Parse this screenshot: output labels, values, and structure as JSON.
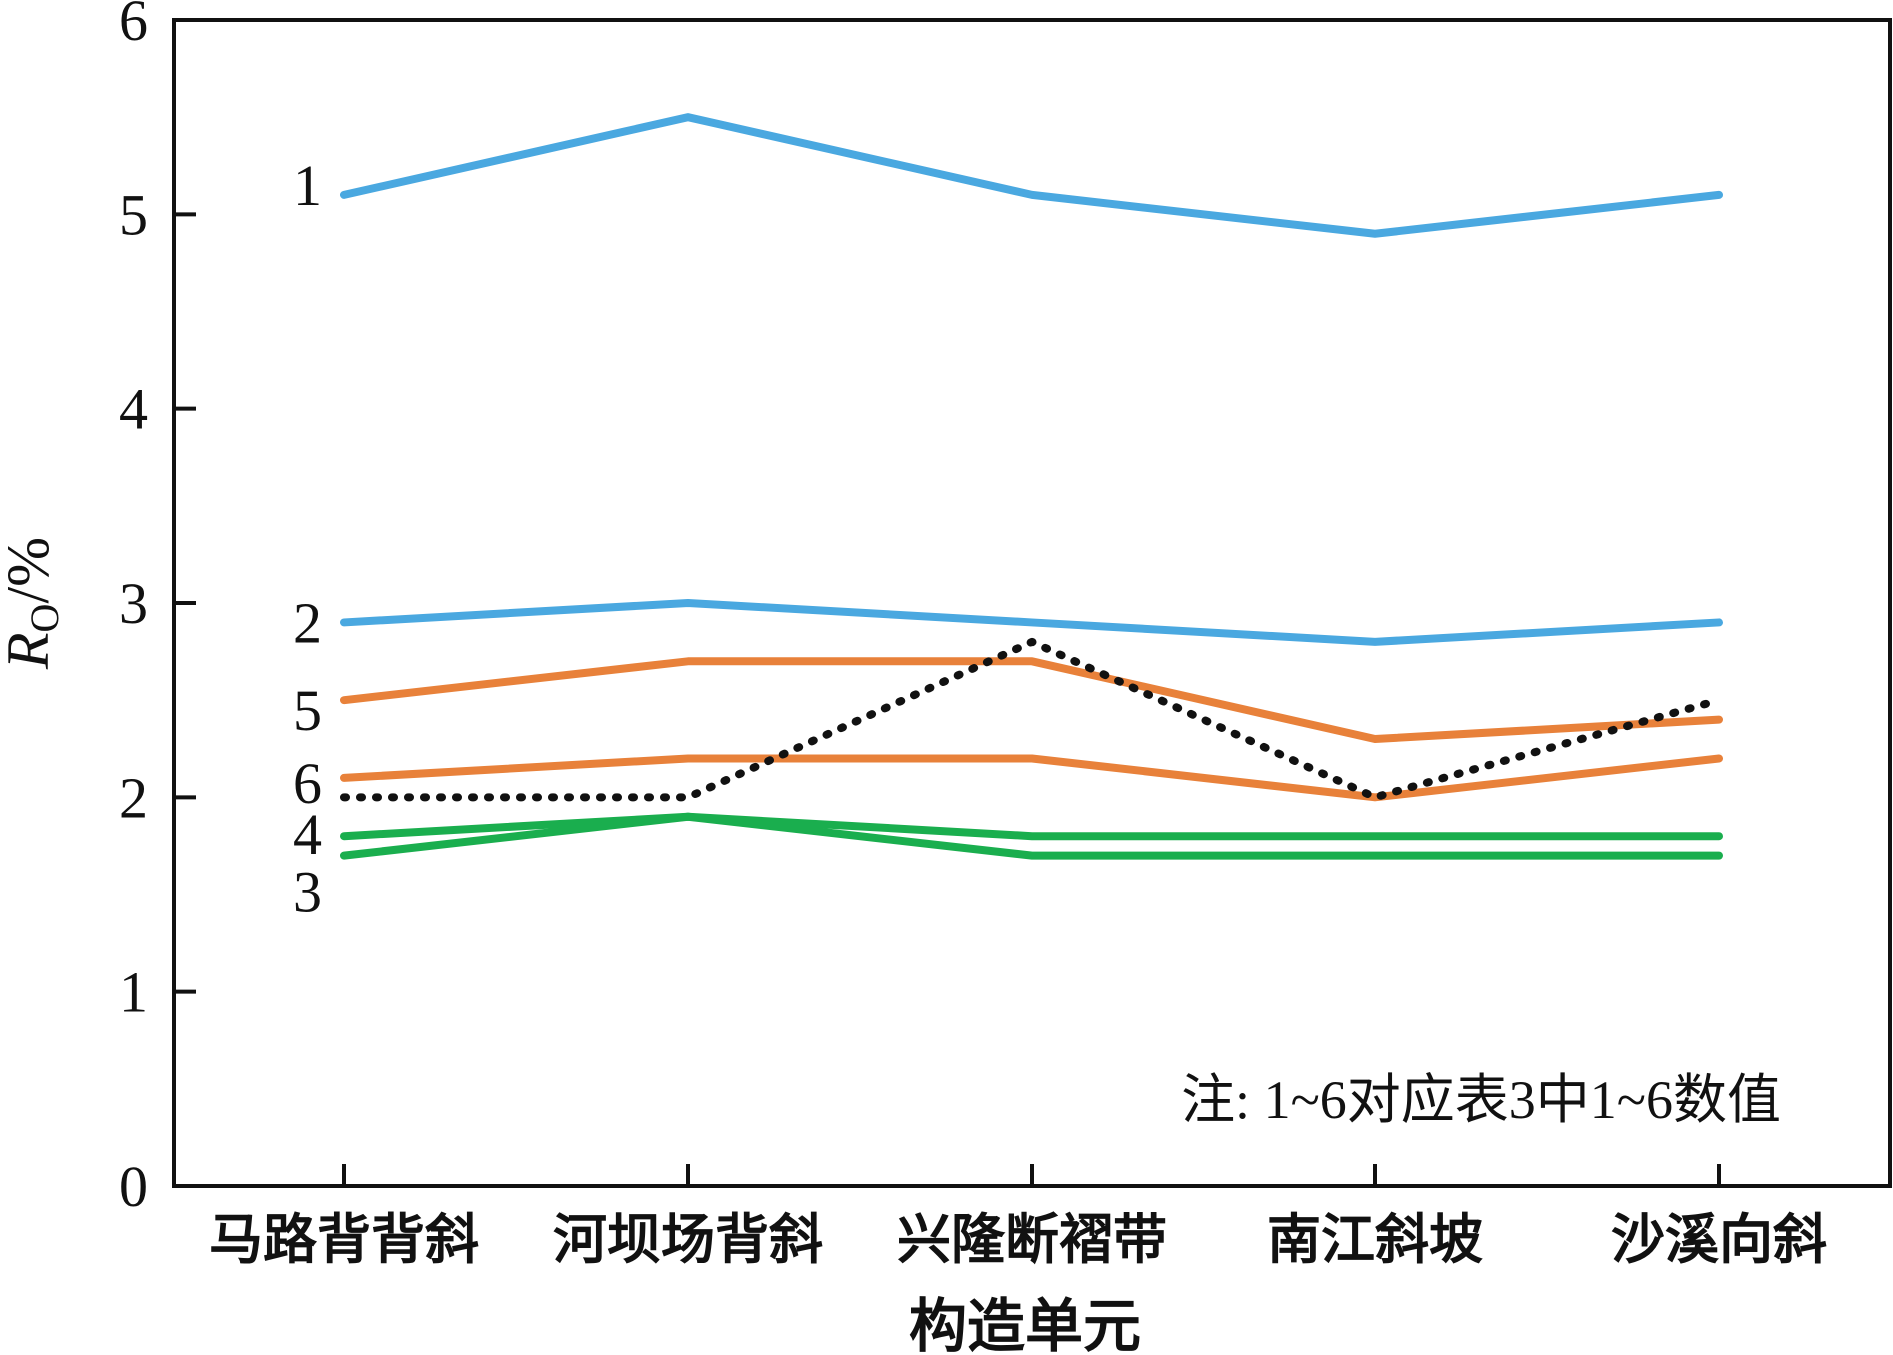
{
  "chart_data": {
    "type": "line",
    "categories": [
      "马路背背斜",
      "河坝场背斜",
      "兴隆断褶带",
      "南江斜坡",
      "沙溪向斜"
    ],
    "xlabel": "构造单元",
    "ylabel": {
      "symbol": "R",
      "subscript": "O",
      "unit": "/%"
    },
    "ylim": [
      0,
      6
    ],
    "yticks": [
      "0",
      "1",
      "2",
      "3",
      "4",
      "5",
      "6"
    ],
    "grid": false,
    "annotation": "注: 1~6对应表3中1~6数值",
    "series": [
      {
        "tag": "1",
        "color": "#4aa8e0",
        "style": "solid",
        "values": [
          5.1,
          5.5,
          5.1,
          4.9,
          5.1
        ]
      },
      {
        "tag": "2",
        "color": "#4aa8e0",
        "style": "solid",
        "values": [
          2.9,
          3.0,
          2.9,
          2.8,
          2.9
        ]
      },
      {
        "tag": "5",
        "color": "#e8813a",
        "style": "solid",
        "values": [
          2.5,
          2.7,
          2.7,
          2.3,
          2.4
        ]
      },
      {
        "tag": "6",
        "color": "#e8813a",
        "style": "solid",
        "values": [
          2.1,
          2.2,
          2.2,
          2.0,
          2.2
        ]
      },
      {
        "tag": "",
        "color": "#111111",
        "style": "dotted",
        "values": [
          2.0,
          2.0,
          2.8,
          2.0,
          2.5
        ]
      },
      {
        "tag": "4",
        "color": "#1aae4e",
        "style": "solid",
        "values": [
          1.8,
          1.9,
          1.8,
          1.8,
          1.8
        ]
      },
      {
        "tag": "3",
        "color": "#1aae4e",
        "style": "solid",
        "values": [
          1.7,
          1.9,
          1.7,
          1.7,
          1.7
        ]
      }
    ]
  }
}
